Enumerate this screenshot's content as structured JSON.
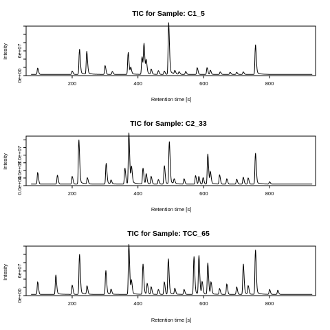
{
  "chart_data": [
    {
      "type": "line",
      "title": "TIC for Sample: C1_5",
      "xlabel": "Retention time [s]",
      "ylabel": "Intesity",
      "xlim": [
        60,
        940
      ],
      "ylim": [
        0,
        120000000
      ],
      "xticks": [
        200,
        400,
        600,
        800
      ],
      "xtick_labels": [
        "200",
        "400",
        "600",
        "800"
      ],
      "yticks": [
        0,
        60000000
      ],
      "ytick_labels": [
        "0e+00",
        "6e+07"
      ],
      "grid": false,
      "baseline": 3000000,
      "baseline_start": 75,
      "end_x": 930,
      "hump_height": 10000000,
      "peaks": [
        [
          95,
          15000000
        ],
        [
          200,
          8000000
        ],
        [
          222,
          57000000
        ],
        [
          244,
          52000000
        ],
        [
          300,
          21000000
        ],
        [
          322,
          7000000
        ],
        [
          370,
          50000000
        ],
        [
          378,
          15000000
        ],
        [
          412,
          40000000
        ],
        [
          418,
          67000000
        ],
        [
          425,
          30000000
        ],
        [
          440,
          12000000
        ],
        [
          462,
          9000000
        ],
        [
          480,
          8000000
        ],
        [
          493,
          117000000
        ],
        [
          512,
          8000000
        ],
        [
          525,
          6000000
        ],
        [
          545,
          7000000
        ],
        [
          580,
          16000000
        ],
        [
          610,
          16000000
        ],
        [
          620,
          10000000
        ],
        [
          650,
          6000000
        ],
        [
          680,
          5000000
        ],
        [
          700,
          5000000
        ],
        [
          720,
          6000000
        ],
        [
          757,
          67000000
        ]
      ]
    },
    {
      "type": "line",
      "title": "TIC for Sample: C2_33",
      "xlabel": "Retention time [s]",
      "ylabel": "Intesity",
      "xlim": [
        60,
        940
      ],
      "ylim": [
        0,
        130000000
      ],
      "xticks": [
        200,
        400,
        600,
        800
      ],
      "xtick_labels": [
        "200",
        "400",
        "600",
        "800"
      ],
      "yticks": [
        0,
        40000000,
        80000000
      ],
      "ytick_labels": [
        "0.0e+00",
        "4.0e+07",
        "8.0e+07"
      ],
      "grid": false,
      "baseline": 4000000,
      "baseline_start": 75,
      "end_x": 930,
      "hump_height": 8000000,
      "peaks": [
        [
          95,
          30000000
        ],
        [
          155,
          23000000
        ],
        [
          200,
          20000000
        ],
        [
          220,
          110000000
        ],
        [
          246,
          16000000
        ],
        [
          303,
          52000000
        ],
        [
          318,
          10000000
        ],
        [
          360,
          40000000
        ],
        [
          372,
          127000000
        ],
        [
          380,
          40000000
        ],
        [
          415,
          40000000
        ],
        [
          425,
          26000000
        ],
        [
          440,
          20000000
        ],
        [
          462,
          12000000
        ],
        [
          480,
          46000000
        ],
        [
          495,
          105000000
        ],
        [
          510,
          12000000
        ],
        [
          540,
          14000000
        ],
        [
          575,
          22000000
        ],
        [
          585,
          20000000
        ],
        [
          598,
          17000000
        ],
        [
          612,
          75000000
        ],
        [
          620,
          30000000
        ],
        [
          648,
          24000000
        ],
        [
          670,
          14000000
        ],
        [
          700,
          13000000
        ],
        [
          720,
          18000000
        ],
        [
          735,
          16000000
        ],
        [
          757,
          77000000
        ],
        [
          800,
          6000000
        ]
      ]
    },
    {
      "type": "line",
      "title": "TIC for Sample: TCC_65",
      "xlabel": "Retention time [s]",
      "ylabel": "Intesity",
      "xlim": [
        60,
        940
      ],
      "ylim": [
        0,
        120000000
      ],
      "xticks": [
        200,
        400,
        600,
        800
      ],
      "xtick_labels": [
        "200",
        "400",
        "600",
        "800"
      ],
      "yticks": [
        0,
        60000000
      ],
      "ytick_labels": [
        "0e+00",
        "6e+07"
      ],
      "grid": false,
      "baseline": 3000000,
      "baseline_start": 75,
      "end_x": 930,
      "hump_height": 8000000,
      "peaks": [
        [
          95,
          30000000
        ],
        [
          150,
          45000000
        ],
        [
          200,
          22000000
        ],
        [
          222,
          92000000
        ],
        [
          245,
          20000000
        ],
        [
          302,
          55000000
        ],
        [
          318,
          12000000
        ],
        [
          372,
          115000000
        ],
        [
          380,
          30000000
        ],
        [
          415,
          70000000
        ],
        [
          428,
          25000000
        ],
        [
          440,
          18000000
        ],
        [
          462,
          12000000
        ],
        [
          480,
          30000000
        ],
        [
          492,
          82000000
        ],
        [
          512,
          14000000
        ],
        [
          540,
          12000000
        ],
        [
          570,
          87000000
        ],
        [
          585,
          88000000
        ],
        [
          595,
          28000000
        ],
        [
          612,
          72000000
        ],
        [
          622,
          28000000
        ],
        [
          648,
          14000000
        ],
        [
          670,
          25000000
        ],
        [
          700,
          18000000
        ],
        [
          720,
          70000000
        ],
        [
          735,
          20000000
        ],
        [
          757,
          102000000
        ],
        [
          800,
          12000000
        ],
        [
          825,
          10000000
        ]
      ]
    }
  ]
}
